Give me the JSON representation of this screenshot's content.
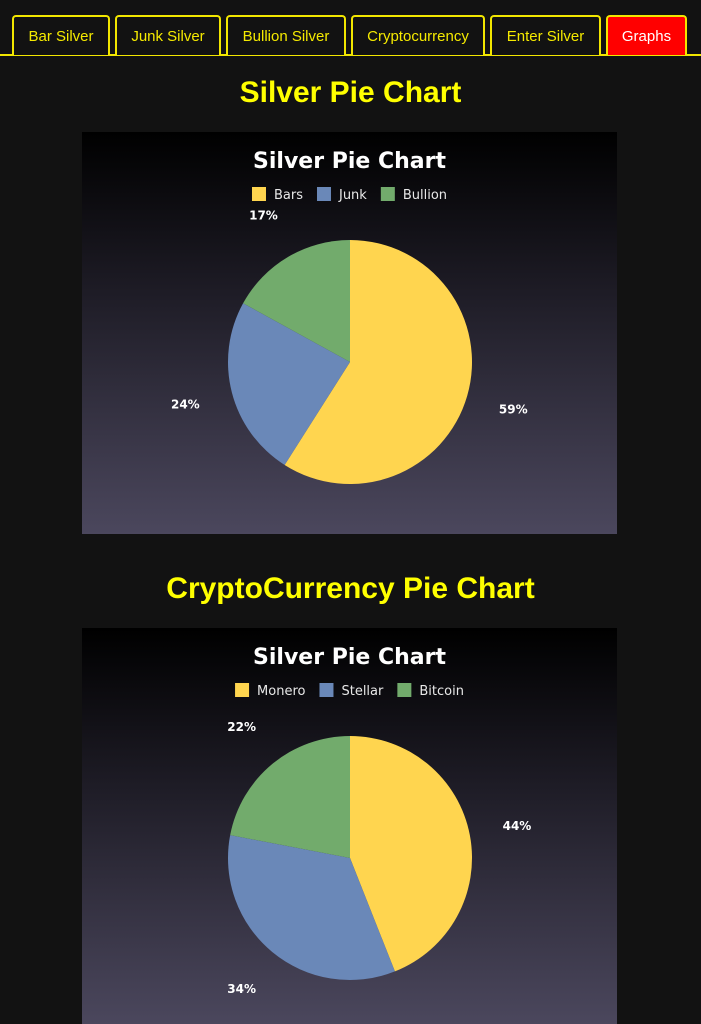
{
  "nav": {
    "tabs": [
      {
        "label": "Bar Silver",
        "active": false
      },
      {
        "label": "Junk Silver",
        "active": false
      },
      {
        "label": "Bullion Silver",
        "active": false
      },
      {
        "label": "Cryptocurrency",
        "active": false
      },
      {
        "label": "Enter Silver",
        "active": false
      },
      {
        "label": "Graphs",
        "active": true
      }
    ]
  },
  "sections": [
    {
      "heading": "Silver Pie Chart"
    },
    {
      "heading": "CryptoCurrency Pie Chart"
    }
  ],
  "colors": {
    "accent": "#ffff00",
    "active_tab": "#ff0000",
    "slice_1": "#ffd54f",
    "slice_2": "#6a88b8",
    "slice_3": "#72ab6c"
  },
  "chart_data": [
    {
      "type": "pie",
      "title": "Silver Pie Chart",
      "legend_position": "top",
      "categories": [
        "Bars",
        "Junk",
        "Bullion"
      ],
      "values": [
        59,
        24,
        17
      ],
      "labels": [
        "59%",
        "24%",
        "17%"
      ],
      "colors": [
        "#ffd54f",
        "#6a88b8",
        "#72ab6c"
      ]
    },
    {
      "type": "pie",
      "title": "Silver Pie Chart",
      "legend_position": "top",
      "categories": [
        "Monero",
        "Stellar",
        "Bitcoin"
      ],
      "values": [
        44,
        34,
        22
      ],
      "labels": [
        "44%",
        "34%",
        "22%"
      ],
      "colors": [
        "#ffd54f",
        "#6a88b8",
        "#72ab6c"
      ]
    }
  ]
}
